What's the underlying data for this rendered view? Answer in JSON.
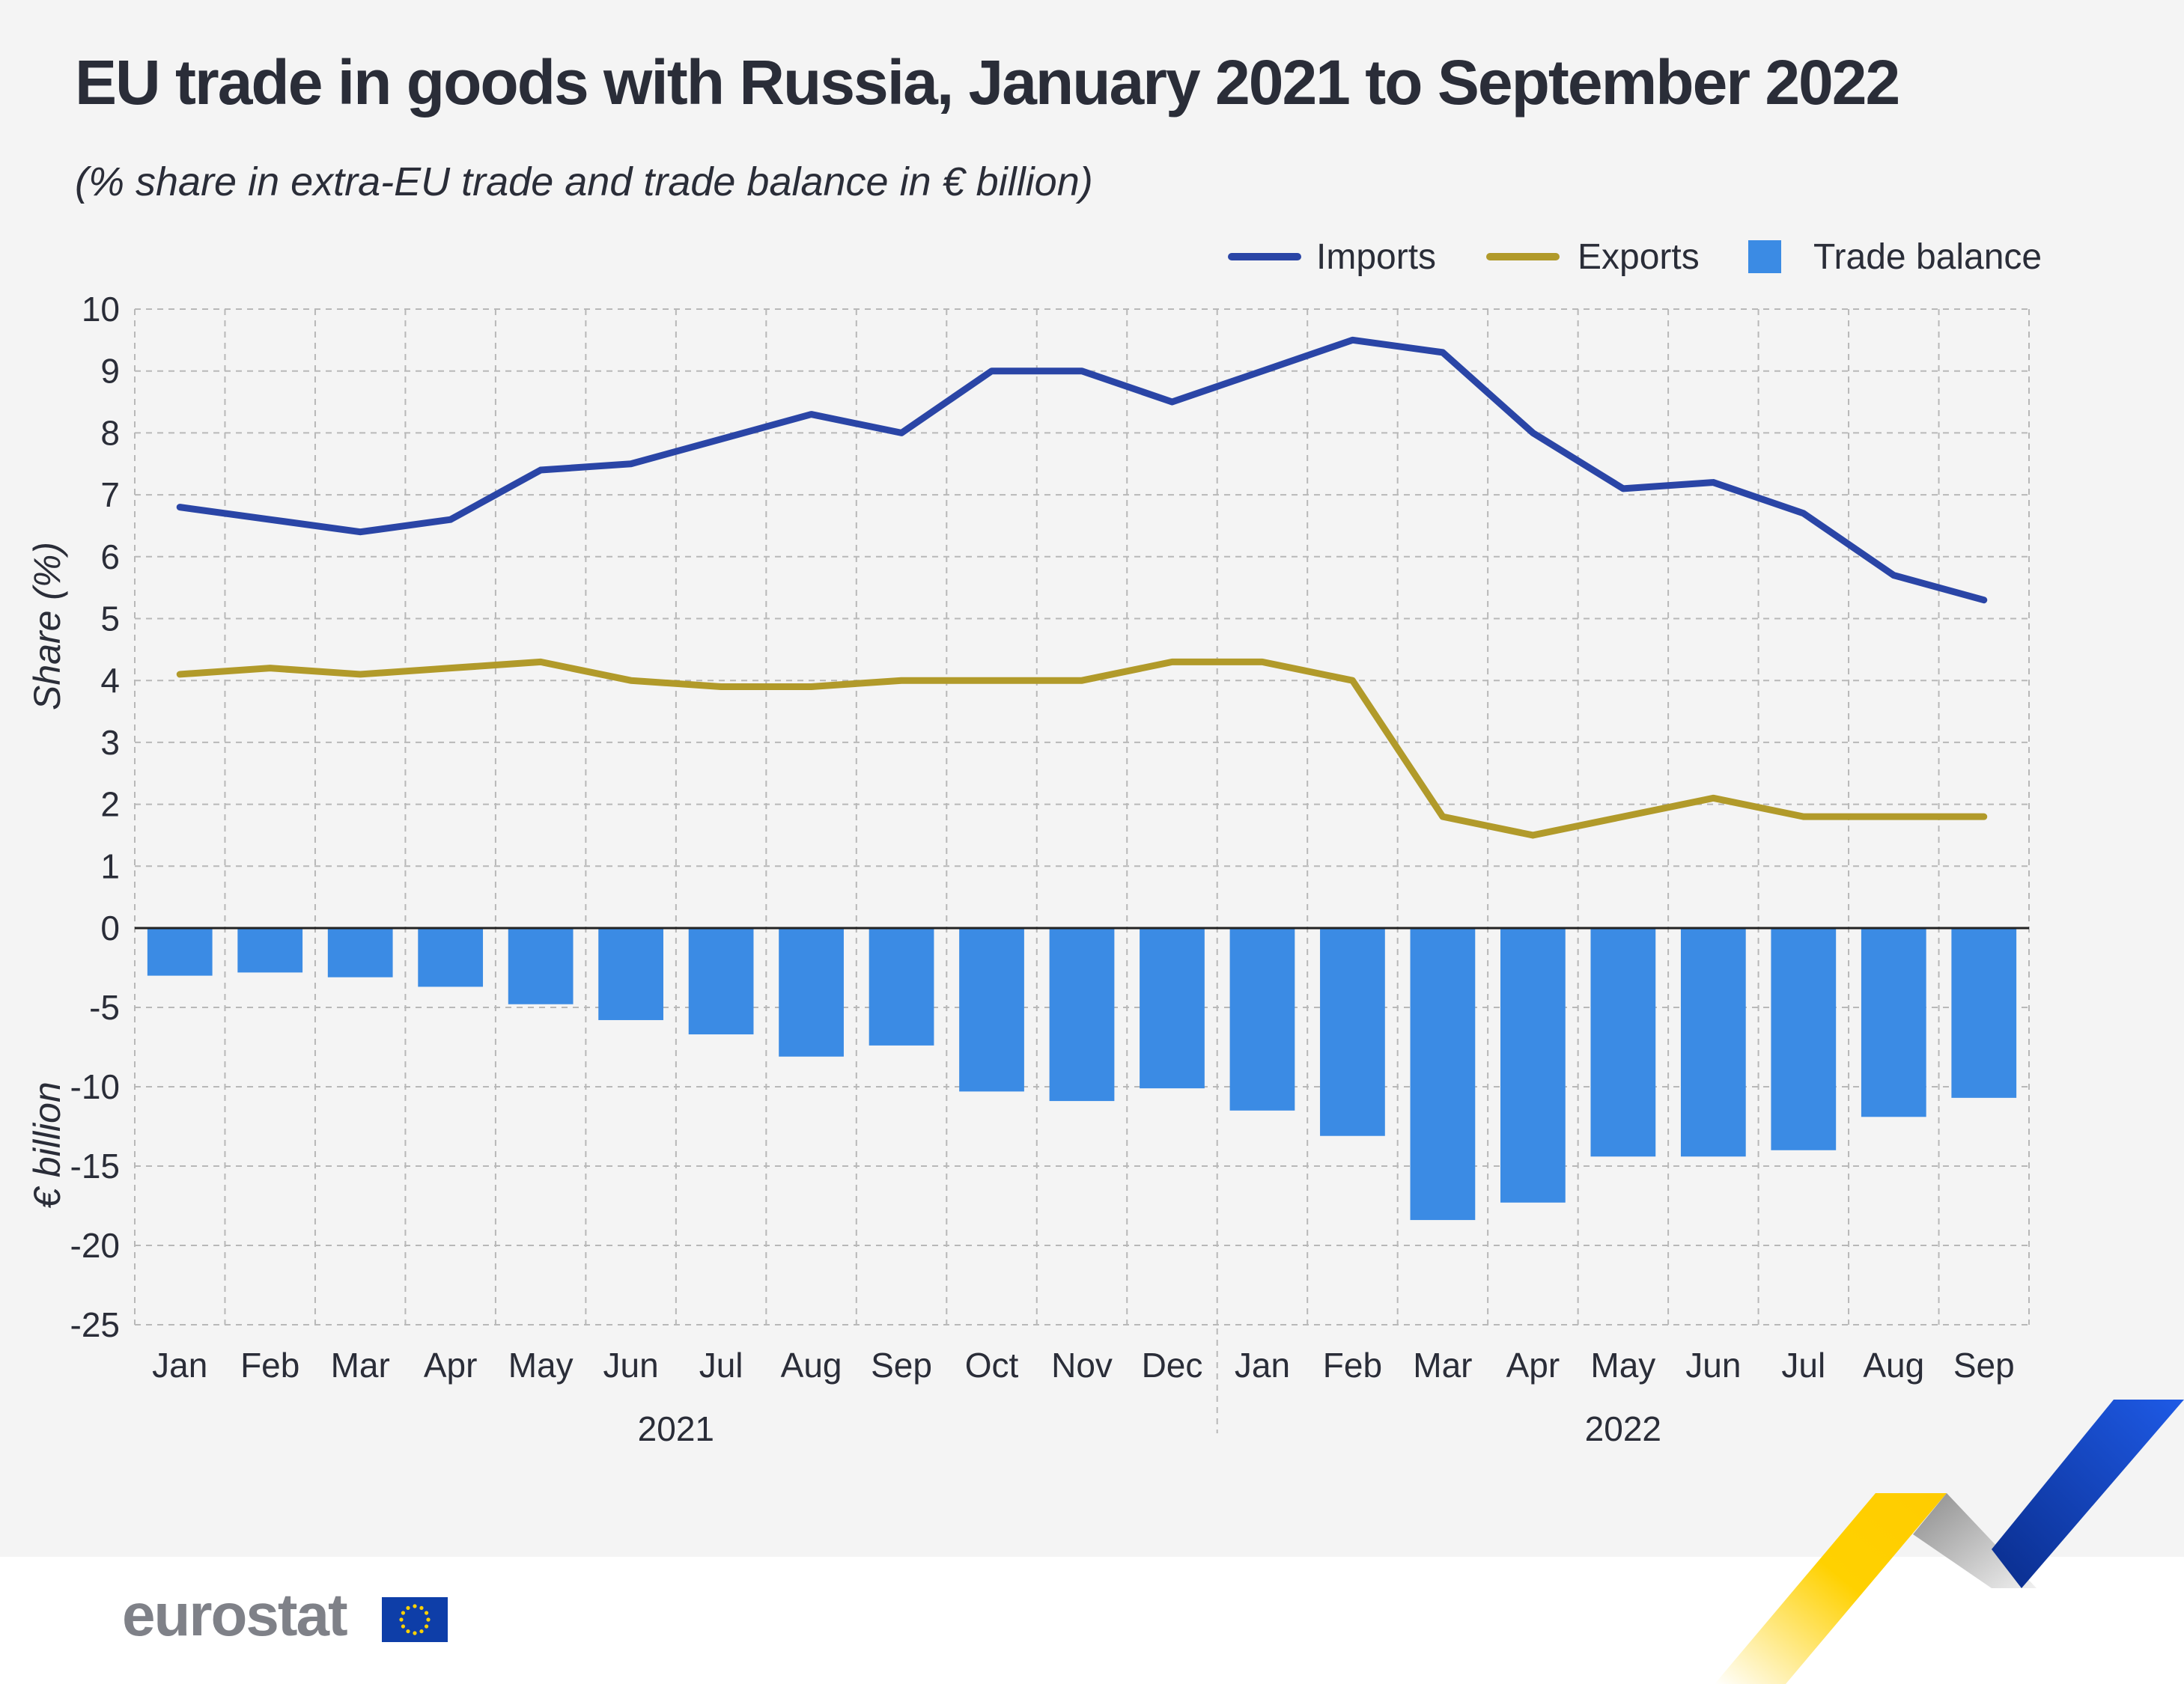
{
  "title": "EU trade in goods with Russia, January 2021 to September 2022",
  "subtitle": "(% share in extra-EU trade and trade balance in € billion)",
  "logo": {
    "text": "eurostat",
    "icon": "eu-flag-icon"
  },
  "colors": {
    "imports": "#2a45a6",
    "exports": "#b19a2a",
    "balance": "#3b8be4",
    "text": "#2a2d38",
    "grid": "#b8b8b8"
  },
  "chart_data": {
    "type": "bar",
    "title": "EU trade in goods with Russia, January 2021 to September 2022",
    "categories": [
      "Jan",
      "Feb",
      "Mar",
      "Apr",
      "May",
      "Jun",
      "Jul",
      "Aug",
      "Sep",
      "Oct",
      "Nov",
      "Dec",
      "Jan",
      "Feb",
      "Mar",
      "Apr",
      "May",
      "Jun",
      "Jul",
      "Aug",
      "Sep"
    ],
    "groups": [
      {
        "label": "2021",
        "count": 12
      },
      {
        "label": "2022",
        "count": 9
      }
    ],
    "legend_position": "top-right",
    "grid": true,
    "top_axis": {
      "label": "Share (%)",
      "ylim": [
        0,
        10
      ],
      "ticks": [
        0,
        1,
        2,
        3,
        4,
        5,
        6,
        7,
        8,
        9,
        10
      ]
    },
    "bottom_axis": {
      "label": "€ billion",
      "ylim": [
        -25,
        0
      ],
      "ticks": [
        0,
        -5,
        -10,
        -15,
        -20,
        -25
      ]
    },
    "series": [
      {
        "name": "Imports",
        "type": "line",
        "axis": "top",
        "values": [
          6.8,
          6.6,
          6.4,
          6.6,
          7.4,
          7.5,
          7.9,
          8.3,
          8.0,
          9.0,
          9.0,
          8.5,
          9.0,
          9.5,
          9.3,
          8.0,
          7.1,
          7.2,
          6.7,
          5.7,
          5.3
        ]
      },
      {
        "name": "Exports",
        "type": "line",
        "axis": "top",
        "values": [
          4.1,
          4.2,
          4.1,
          4.2,
          4.3,
          4.0,
          3.9,
          3.9,
          4.0,
          4.0,
          4.0,
          4.3,
          4.3,
          4.0,
          1.8,
          1.5,
          1.8,
          2.1,
          1.8,
          1.8,
          1.8
        ]
      },
      {
        "name": "Trade balance",
        "type": "bar",
        "axis": "bottom",
        "values": [
          -3.0,
          -2.8,
          -3.1,
          -3.7,
          -4.8,
          -5.8,
          -6.7,
          -8.1,
          -7.4,
          -10.3,
          -10.9,
          -10.1,
          -11.5,
          -13.1,
          -18.4,
          -17.3,
          -14.4,
          -14.4,
          -14.0,
          -11.9,
          -10.7
        ]
      }
    ]
  }
}
